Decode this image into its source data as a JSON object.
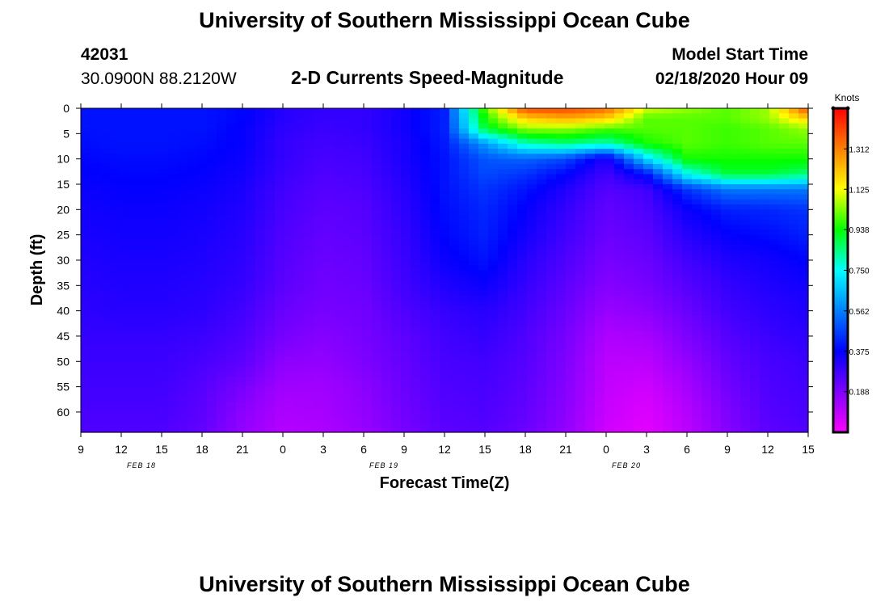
{
  "header": {
    "title": "University of Southern Mississippi Ocean Cube",
    "station_id": "42031",
    "station_location": "30.0900N 88.2120W",
    "model_start_label": "Model Start Time",
    "model_start_value": "02/18/2020 Hour 09"
  },
  "footer": {
    "title": "University of Southern Mississippi Ocean Cube"
  },
  "chart_data": {
    "type": "heatmap",
    "title": "2-D Currents Speed-Magnitude",
    "xlabel": "Forecast Time(Z)",
    "ylabel": "Depth (ft)",
    "x_tick_labels": [
      "9",
      "12",
      "15",
      "18",
      "21",
      "0",
      "3",
      "6",
      "9",
      "12",
      "15",
      "18",
      "21",
      "0",
      "3",
      "6",
      "9",
      "12",
      "15"
    ],
    "date_labels": [
      {
        "label": "FEB 18",
        "at_tick_index": 4
      },
      {
        "label": "FEB 19",
        "at_tick_index": 10
      },
      {
        "label": "FEB 20",
        "at_tick_index": 16
      }
    ],
    "y_tick_labels": [
      "0",
      "5",
      "10",
      "15",
      "20",
      "25",
      "30",
      "35",
      "40",
      "45",
      "50",
      "55",
      "60"
    ],
    "ylim": [
      0,
      64
    ],
    "y_inverted": true,
    "hours_range": [
      0,
      54
    ],
    "colorbar": {
      "unit_label": "Knots",
      "range": [
        0,
        1.5
      ],
      "tick_labels": [
        "1.312",
        "1.125",
        "0.938",
        "0.750",
        "0.562",
        "0.375",
        "0.188"
      ],
      "colors": [
        "#ff00ff",
        "#8000ff",
        "#0000ff",
        "#0080ff",
        "#00ffff",
        "#00ff00",
        "#ffff00",
        "#ff8000",
        "#ff0000"
      ]
    },
    "grid": {
      "hours": [
        0,
        3,
        6,
        9,
        12,
        15,
        18,
        21,
        24,
        27,
        30,
        33,
        36,
        39,
        42,
        45,
        48,
        51,
        54
      ],
      "depths_ft": [
        0,
        2,
        4,
        7,
        10,
        13,
        16,
        20,
        25,
        30,
        35,
        40,
        45,
        50,
        55,
        60,
        64
      ],
      "speed_knots": [
        [
          0.4,
          0.4,
          0.4,
          0.4,
          0.38,
          0.32,
          0.3,
          0.3,
          0.35,
          0.42,
          1.0,
          1.4,
          1.4,
          1.35,
          1.1,
          1.05,
          1.0,
          1.05,
          1.4
        ],
        [
          0.4,
          0.4,
          0.4,
          0.4,
          0.38,
          0.32,
          0.3,
          0.3,
          0.35,
          0.42,
          0.95,
          1.2,
          1.25,
          1.2,
          1.0,
          1.0,
          1.0,
          1.05,
          1.2
        ],
        [
          0.4,
          0.4,
          0.4,
          0.4,
          0.37,
          0.31,
          0.29,
          0.3,
          0.35,
          0.42,
          0.9,
          1.05,
          1.05,
          1.0,
          1.0,
          1.0,
          0.98,
          1.0,
          1.05
        ],
        [
          0.39,
          0.4,
          0.4,
          0.39,
          0.37,
          0.3,
          0.28,
          0.29,
          0.34,
          0.41,
          0.6,
          0.8,
          0.85,
          0.8,
          0.95,
          1.0,
          0.98,
          1.0,
          1.0
        ],
        [
          0.38,
          0.39,
          0.39,
          0.38,
          0.36,
          0.3,
          0.27,
          0.28,
          0.34,
          0.4,
          0.5,
          0.52,
          0.48,
          0.32,
          0.7,
          0.95,
          0.95,
          0.95,
          0.95
        ],
        [
          0.37,
          0.38,
          0.38,
          0.37,
          0.35,
          0.29,
          0.26,
          0.27,
          0.33,
          0.4,
          0.48,
          0.45,
          0.38,
          0.28,
          0.4,
          0.75,
          0.9,
          0.9,
          0.85
        ],
        [
          0.36,
          0.37,
          0.37,
          0.36,
          0.34,
          0.28,
          0.25,
          0.26,
          0.32,
          0.4,
          0.45,
          0.4,
          0.33,
          0.25,
          0.28,
          0.45,
          0.55,
          0.55,
          0.55
        ],
        [
          0.35,
          0.36,
          0.36,
          0.35,
          0.33,
          0.27,
          0.24,
          0.25,
          0.31,
          0.39,
          0.43,
          0.37,
          0.3,
          0.23,
          0.26,
          0.36,
          0.42,
          0.43,
          0.45
        ],
        [
          0.34,
          0.35,
          0.35,
          0.34,
          0.32,
          0.26,
          0.23,
          0.24,
          0.3,
          0.38,
          0.42,
          0.35,
          0.28,
          0.22,
          0.24,
          0.32,
          0.37,
          0.39,
          0.42
        ],
        [
          0.33,
          0.34,
          0.34,
          0.33,
          0.31,
          0.25,
          0.22,
          0.23,
          0.29,
          0.36,
          0.4,
          0.32,
          0.26,
          0.2,
          0.22,
          0.28,
          0.33,
          0.35,
          0.38
        ],
        [
          0.32,
          0.33,
          0.33,
          0.32,
          0.3,
          0.24,
          0.21,
          0.22,
          0.28,
          0.33,
          0.36,
          0.3,
          0.24,
          0.18,
          0.2,
          0.25,
          0.3,
          0.33,
          0.35
        ],
        [
          0.31,
          0.32,
          0.32,
          0.31,
          0.28,
          0.22,
          0.2,
          0.21,
          0.26,
          0.3,
          0.32,
          0.28,
          0.22,
          0.15,
          0.17,
          0.22,
          0.28,
          0.31,
          0.33
        ],
        [
          0.3,
          0.3,
          0.3,
          0.29,
          0.26,
          0.2,
          0.18,
          0.2,
          0.24,
          0.28,
          0.3,
          0.26,
          0.2,
          0.12,
          0.13,
          0.19,
          0.25,
          0.29,
          0.31
        ],
        [
          0.29,
          0.29,
          0.29,
          0.27,
          0.24,
          0.17,
          0.16,
          0.19,
          0.23,
          0.27,
          0.28,
          0.25,
          0.19,
          0.1,
          0.1,
          0.16,
          0.23,
          0.27,
          0.29
        ],
        [
          0.28,
          0.28,
          0.28,
          0.25,
          0.2,
          0.14,
          0.14,
          0.17,
          0.22,
          0.26,
          0.27,
          0.24,
          0.18,
          0.09,
          0.07,
          0.13,
          0.21,
          0.26,
          0.28
        ],
        [
          0.27,
          0.27,
          0.27,
          0.24,
          0.17,
          0.12,
          0.13,
          0.16,
          0.21,
          0.25,
          0.26,
          0.23,
          0.17,
          0.08,
          0.05,
          0.11,
          0.19,
          0.25,
          0.27
        ],
        [
          0.26,
          0.26,
          0.26,
          0.23,
          0.16,
          0.11,
          0.12,
          0.15,
          0.2,
          0.24,
          0.25,
          0.22,
          0.16,
          0.07,
          0.04,
          0.1,
          0.18,
          0.24,
          0.26
        ]
      ]
    }
  }
}
